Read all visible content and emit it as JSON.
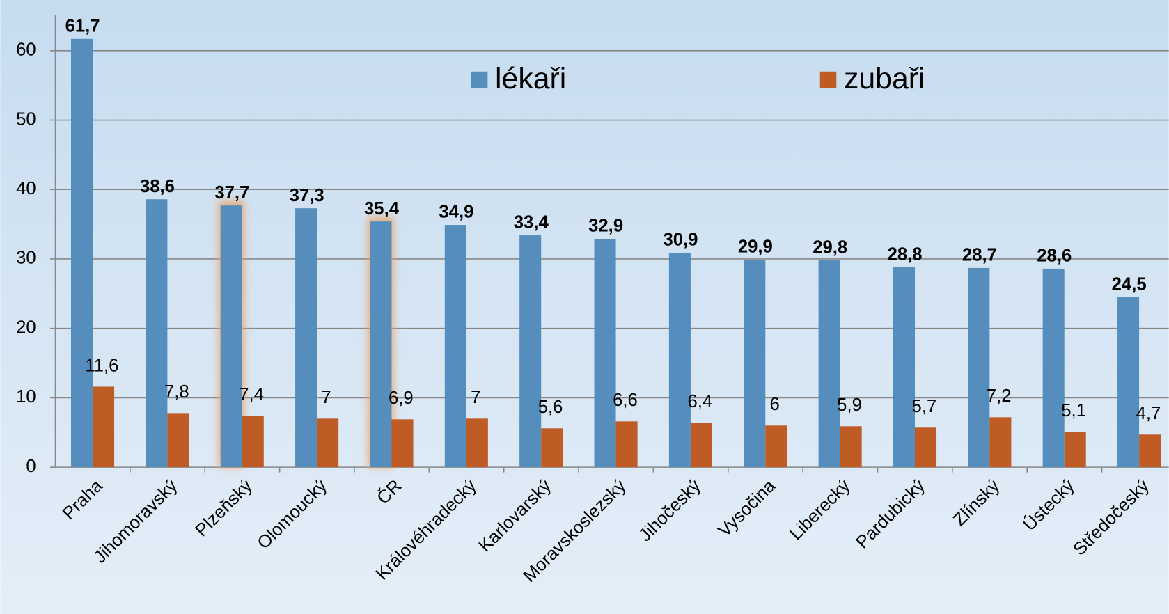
{
  "chart_data": {
    "type": "bar",
    "categories": [
      "Praha",
      "Jihomoravský",
      "Plzeňský",
      "Olomoucký",
      "ČR",
      "Královéhradecký",
      "Karlovarský",
      "Moravskoslezský",
      "Jihočeský",
      "Vysočina",
      "Liberecký",
      "Pardubický",
      "Zlínský",
      "Ústecký",
      "Středočeský"
    ],
    "series": [
      {
        "name": "lékaři",
        "color": "#558ebd",
        "values": [
          61.7,
          38.6,
          37.7,
          37.3,
          35.4,
          34.9,
          33.4,
          32.9,
          30.9,
          29.9,
          29.8,
          28.8,
          28.7,
          28.6,
          24.5
        ],
        "value_labels": [
          "61,7",
          "38,6",
          "37,7",
          "37,3",
          "35,4",
          "34,9",
          "33,4",
          "32,9",
          "30,9",
          "29,9",
          "29,8",
          "28,8",
          "28,7",
          "28,6",
          "24,5"
        ]
      },
      {
        "name": "zubaři",
        "color": "#bf5b25",
        "values": [
          11.6,
          7.8,
          7.4,
          7,
          6.9,
          7,
          5.6,
          6.6,
          6.4,
          6,
          5.9,
          5.7,
          7.2,
          5.1,
          4.7
        ],
        "value_labels": [
          "11,6",
          "7,8",
          "7,4",
          "7",
          "6,9",
          "7",
          "5,6",
          "6,6",
          "6,4",
          "6",
          "5,9",
          "5,7",
          "7,2",
          "5,1",
          "4,7"
        ]
      }
    ],
    "ylim": [
      0,
      60
    ],
    "yticks": [
      0,
      10,
      20,
      30,
      40,
      50,
      60
    ],
    "grid": true,
    "legend": "top"
  }
}
